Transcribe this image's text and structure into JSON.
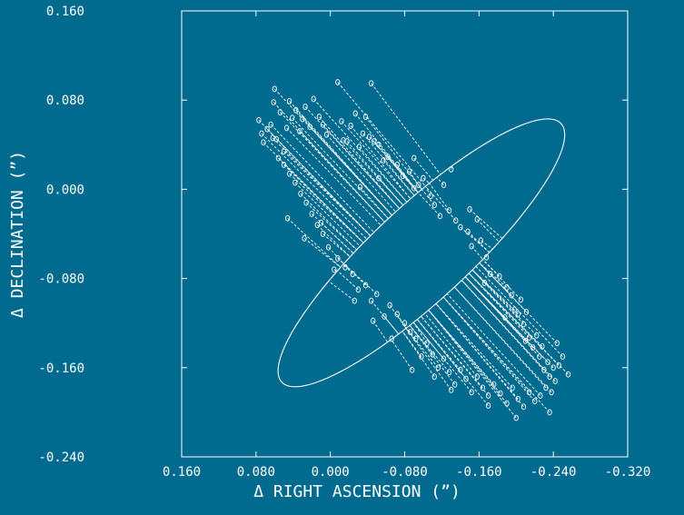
{
  "chart_data": {
    "type": "scatter",
    "title": "",
    "xlabel": "Δ RIGHT ASCENSION (”)",
    "ylabel": "Δ DECLINATION (”)",
    "xlim": [
      0.16,
      -0.32
    ],
    "ylim": [
      -0.24,
      0.16
    ],
    "xticks": [
      "0.160",
      "0.080",
      "0.000",
      "-0.080",
      "-0.160",
      "-0.240",
      "-0.320"
    ],
    "yticks": [
      "0.160",
      "0.080",
      "0.000",
      "-0.080",
      "-0.160",
      "-0.240"
    ],
    "grid": false,
    "colors": {
      "background": "#006b8f",
      "foreground": "#ffffff"
    },
    "orbit": {
      "center": [
        -0.098,
        -0.057
      ],
      "semi_major": 0.19,
      "semi_minor": 0.046,
      "angle_deg": -37
    },
    "observations": [
      {
        "x": 0.077,
        "y": 0.062
      },
      {
        "x": 0.072,
        "y": 0.042
      },
      {
        "x": 0.064,
        "y": 0.058
      },
      {
        "x": 0.061,
        "y": 0.078
      },
      {
        "x": 0.058,
        "y": 0.045
      },
      {
        "x": 0.054,
        "y": 0.069
      },
      {
        "x": 0.05,
        "y": 0.034
      },
      {
        "x": 0.047,
        "y": 0.055
      },
      {
        "x": 0.044,
        "y": 0.079
      },
      {
        "x": 0.041,
        "y": 0.064
      },
      {
        "x": 0.037,
        "y": 0.071
      },
      {
        "x": 0.033,
        "y": 0.052
      },
      {
        "x": 0.03,
        "y": 0.063
      },
      {
        "x": 0.027,
        "y": 0.074
      },
      {
        "x": 0.022,
        "y": 0.056
      },
      {
        "x": 0.018,
        "y": 0.081
      },
      {
        "x": 0.012,
        "y": 0.065
      },
      {
        "x": 0.008,
        "y": 0.058
      },
      {
        "x": 0.004,
        "y": 0.049
      },
      {
        "x": -0.008,
        "y": 0.096
      },
      {
        "x": -0.012,
        "y": 0.061
      },
      {
        "x": -0.018,
        "y": 0.043
      },
      {
        "x": -0.022,
        "y": 0.057
      },
      {
        "x": -0.027,
        "y": 0.068
      },
      {
        "x": -0.031,
        "y": 0.038
      },
      {
        "x": -0.035,
        "y": 0.05
      },
      {
        "x": -0.038,
        "y": 0.065
      },
      {
        "x": -0.042,
        "y": 0.047
      },
      {
        "x": -0.047,
        "y": 0.043
      },
      {
        "x": -0.052,
        "y": 0.04
      },
      {
        "x": -0.057,
        "y": 0.026
      },
      {
        "x": -0.062,
        "y": 0.029
      },
      {
        "x": -0.072,
        "y": 0.022
      },
      {
        "x": -0.078,
        "y": 0.012
      },
      {
        "x": -0.085,
        "y": 0.016
      },
      {
        "x": -0.09,
        "y": 0.001
      },
      {
        "x": -0.095,
        "y": 0.004
      },
      {
        "x": -0.1,
        "y": 0.01
      },
      {
        "x": -0.108,
        "y": -0.006
      },
      {
        "x": -0.112,
        "y": -0.014
      },
      {
        "x": -0.118,
        "y": -0.024
      },
      {
        "x": -0.122,
        "y": 0.004
      },
      {
        "x": -0.128,
        "y": -0.019
      },
      {
        "x": -0.135,
        "y": -0.028
      },
      {
        "x": -0.14,
        "y": -0.034
      },
      {
        "x": -0.148,
        "y": -0.038
      },
      {
        "x": -0.152,
        "y": -0.051
      },
      {
        "x": -0.158,
        "y": -0.027
      },
      {
        "x": -0.162,
        "y": -0.046
      },
      {
        "x": -0.168,
        "y": -0.061
      },
      {
        "x": -0.172,
        "y": -0.076
      },
      {
        "x": -0.182,
        "y": -0.078
      },
      {
        "x": -0.19,
        "y": -0.088
      },
      {
        "x": -0.195,
        "y": -0.095
      },
      {
        "x": -0.198,
        "y": -0.108
      },
      {
        "x": -0.202,
        "y": -0.112
      },
      {
        "x": -0.205,
        "y": -0.099
      },
      {
        "x": -0.208,
        "y": -0.121
      },
      {
        "x": -0.211,
        "y": -0.11
      },
      {
        "x": -0.214,
        "y": -0.133
      },
      {
        "x": -0.218,
        "y": -0.142
      },
      {
        "x": -0.222,
        "y": -0.131
      },
      {
        "x": -0.225,
        "y": -0.15
      },
      {
        "x": -0.228,
        "y": -0.141
      },
      {
        "x": -0.23,
        "y": -0.162
      },
      {
        "x": -0.234,
        "y": -0.155
      },
      {
        "x": -0.236,
        "y": -0.168
      },
      {
        "x": -0.24,
        "y": -0.16
      },
      {
        "x": -0.242,
        "y": -0.172
      },
      {
        "x": -0.246,
        "y": -0.158
      },
      {
        "x": -0.238,
        "y": -0.182
      },
      {
        "x": -0.232,
        "y": -0.178
      },
      {
        "x": -0.226,
        "y": -0.185
      },
      {
        "x": -0.22,
        "y": -0.19
      },
      {
        "x": -0.214,
        "y": -0.182
      },
      {
        "x": -0.208,
        "y": -0.195
      },
      {
        "x": -0.202,
        "y": -0.188
      },
      {
        "x": -0.196,
        "y": -0.178
      },
      {
        "x": -0.19,
        "y": -0.192
      },
      {
        "x": -0.183,
        "y": -0.183
      },
      {
        "x": -0.176,
        "y": -0.175
      },
      {
        "x": -0.17,
        "y": -0.185
      },
      {
        "x": -0.164,
        "y": -0.178
      },
      {
        "x": -0.158,
        "y": -0.168
      },
      {
        "x": -0.152,
        "y": -0.182
      },
      {
        "x": -0.146,
        "y": -0.17
      },
      {
        "x": -0.14,
        "y": -0.162
      },
      {
        "x": -0.134,
        "y": -0.175
      },
      {
        "x": -0.128,
        "y": -0.164
      },
      {
        "x": -0.122,
        "y": -0.152
      },
      {
        "x": -0.116,
        "y": -0.16
      },
      {
        "x": -0.11,
        "y": -0.148
      },
      {
        "x": -0.104,
        "y": -0.138
      },
      {
        "x": -0.098,
        "y": -0.15
      },
      {
        "x": -0.092,
        "y": -0.134
      },
      {
        "x": -0.086,
        "y": -0.128
      },
      {
        "x": -0.08,
        "y": -0.12
      },
      {
        "x": -0.072,
        "y": -0.112
      },
      {
        "x": -0.064,
        "y": -0.104
      },
      {
        "x": -0.058,
        "y": -0.114
      },
      {
        "x": -0.05,
        "y": -0.094
      },
      {
        "x": -0.044,
        "y": -0.1
      },
      {
        "x": -0.038,
        "y": -0.086
      },
      {
        "x": -0.03,
        "y": -0.09
      },
      {
        "x": -0.024,
        "y": -0.076
      },
      {
        "x": -0.016,
        "y": -0.07
      },
      {
        "x": -0.008,
        "y": -0.062
      },
      {
        "x": 0.002,
        "y": -0.052
      },
      {
        "x": 0.008,
        "y": -0.04
      },
      {
        "x": 0.014,
        "y": -0.032
      },
      {
        "x": 0.02,
        "y": -0.022
      },
      {
        "x": 0.026,
        "y": -0.012
      },
      {
        "x": 0.032,
        "y": -0.004
      },
      {
        "x": 0.038,
        "y": 0.006
      },
      {
        "x": 0.044,
        "y": 0.014
      },
      {
        "x": 0.05,
        "y": 0.022
      },
      {
        "x": 0.056,
        "y": 0.028
      },
      {
        "x": 0.062,
        "y": 0.046
      },
      {
        "x": 0.068,
        "y": 0.054
      },
      {
        "x": 0.046,
        "y": -0.026
      },
      {
        "x": 0.028,
        "y": -0.044
      },
      {
        "x": 0.01,
        "y": -0.03
      },
      {
        "x": -0.004,
        "y": -0.072
      },
      {
        "x": -0.026,
        "y": -0.1
      },
      {
        "x": -0.046,
        "y": -0.118
      },
      {
        "x": -0.066,
        "y": -0.134
      },
      {
        "x": -0.088,
        "y": -0.162
      },
      {
        "x": -0.112,
        "y": -0.168
      },
      {
        "x": -0.13,
        "y": -0.18
      },
      {
        "x": -0.17,
        "y": -0.194
      },
      {
        "x": -0.2,
        "y": -0.205
      },
      {
        "x": -0.236,
        "y": -0.2
      },
      {
        "x": -0.256,
        "y": -0.166
      },
      {
        "x": -0.25,
        "y": -0.15
      },
      {
        "x": -0.244,
        "y": -0.138
      },
      {
        "x": -0.21,
        "y": -0.136
      },
      {
        "x": -0.188,
        "y": -0.115
      },
      {
        "x": -0.166,
        "y": -0.084
      },
      {
        "x": -0.15,
        "y": -0.018
      },
      {
        "x": -0.13,
        "y": 0.018
      },
      {
        "x": -0.09,
        "y": 0.028
      },
      {
        "x": -0.052,
        "y": 0.01
      },
      {
        "x": -0.032,
        "y": 0.002
      },
      {
        "x": -0.014,
        "y": 0.044
      },
      {
        "x": 0.06,
        "y": 0.09
      },
      {
        "x": 0.074,
        "y": 0.05
      },
      {
        "x": -0.044,
        "y": 0.095
      }
    ]
  }
}
